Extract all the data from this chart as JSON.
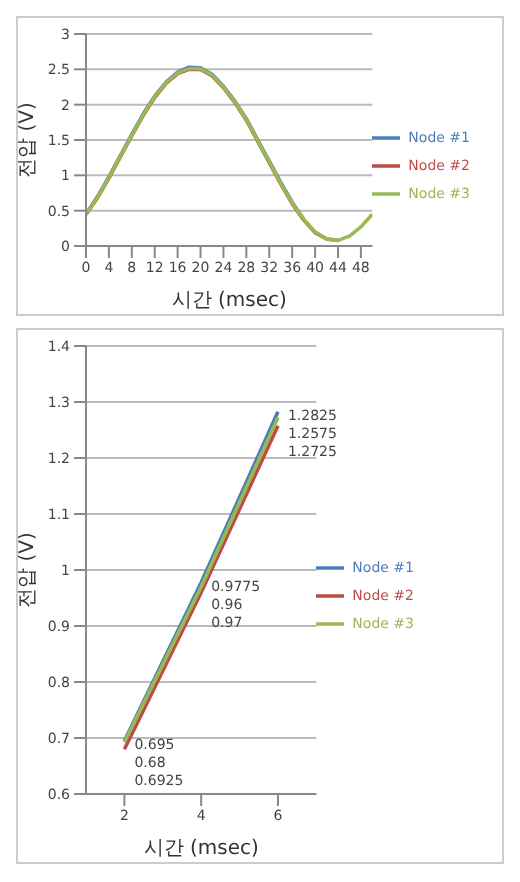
{
  "chart_data": [
    {
      "type": "line",
      "xlabel": "시간 (msec)",
      "ylabel": "전압 (V)",
      "x": [
        0,
        2,
        4,
        6,
        8,
        10,
        12,
        14,
        16,
        18,
        20,
        22,
        24,
        26,
        28,
        30,
        32,
        34,
        36,
        38,
        40,
        42,
        44,
        46,
        48,
        50
      ],
      "xlim": [
        0,
        50
      ],
      "xticks": [
        0,
        4,
        8,
        12,
        16,
        20,
        24,
        28,
        32,
        36,
        40,
        44,
        48
      ],
      "ylim": [
        0,
        3
      ],
      "yticks": [
        0,
        0.5,
        1,
        1.5,
        2,
        2.5,
        3
      ],
      "grid": "y",
      "legend": "right",
      "marker": "none",
      "series": [
        {
          "name": "Node #1",
          "color": "#4a7ebb",
          "values": [
            0.45,
            0.7,
            0.98,
            1.28,
            1.58,
            1.87,
            2.12,
            2.32,
            2.46,
            2.53,
            2.52,
            2.43,
            2.26,
            2.05,
            1.8,
            1.5,
            1.2,
            0.9,
            0.62,
            0.38,
            null,
            null,
            null,
            null,
            null,
            null
          ]
        },
        {
          "name": "Node #2",
          "color": "#be4b48",
          "values": [
            0.45,
            0.68,
            0.96,
            1.26,
            1.56,
            1.85,
            2.1,
            2.3,
            2.44,
            2.5,
            2.5,
            2.41,
            2.24,
            2.03,
            1.78,
            1.48,
            1.18,
            0.88,
            0.6,
            0.37,
            0.19,
            0.1,
            0.08,
            null,
            null,
            null
          ]
        },
        {
          "name": "Node #3",
          "color": "#98b954",
          "values": [
            0.45,
            0.69,
            0.97,
            1.27,
            1.57,
            1.86,
            2.11,
            2.31,
            2.45,
            2.51,
            2.51,
            2.42,
            2.25,
            2.04,
            1.79,
            1.49,
            1.19,
            0.89,
            0.61,
            0.38,
            0.2,
            0.1,
            0.08,
            0.14,
            0.27,
            0.45
          ]
        }
      ]
    },
    {
      "type": "line",
      "xlabel": "시간 (msec)",
      "ylabel": "전압 (V)",
      "x": [
        2,
        4,
        6
      ],
      "xlim": [
        1,
        7
      ],
      "xticks": [
        2,
        4,
        6
      ],
      "ylim": [
        0.6,
        1.4
      ],
      "yticks": [
        0.6,
        0.7,
        0.8,
        0.9,
        1,
        1.1,
        1.2,
        1.3,
        1.4
      ],
      "grid": "y",
      "legend": "right",
      "marker": "none",
      "data_labels": true,
      "series": [
        {
          "name": "Node #1",
          "color": "#4a7ebb",
          "values": [
            0.695,
            0.9775,
            1.2825
          ]
        },
        {
          "name": "Node #2",
          "color": "#be4b48",
          "values": [
            0.68,
            0.96,
            1.2575
          ]
        },
        {
          "name": "Node #3",
          "color": "#98b954",
          "values": [
            0.6925,
            0.97,
            1.2725
          ]
        }
      ]
    }
  ]
}
